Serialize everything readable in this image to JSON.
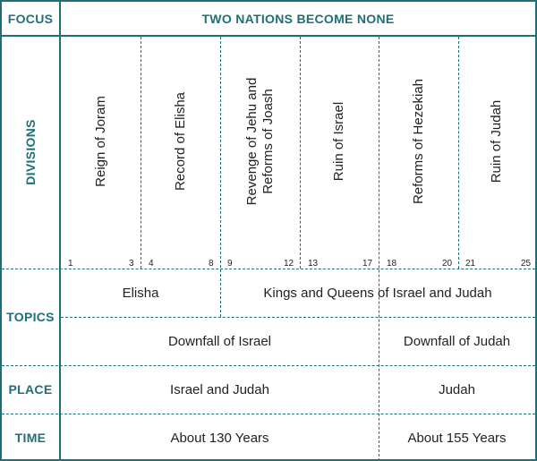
{
  "labels": {
    "focus": "FOCUS",
    "divisions": "DIVISIONS",
    "topics": "TOPICS",
    "place": "PLACE",
    "time": "TIME"
  },
  "focus_title": "TWO NATIONS BECOME NONE",
  "divisions": [
    {
      "title": "Reign of Joram",
      "start": "1",
      "end": "3"
    },
    {
      "title": "Record of Elisha",
      "start": "4",
      "end": "8"
    },
    {
      "title_line1": "Revenge of Jehu and",
      "title_line2": "Reforms of Joash",
      "start": "9",
      "end": "12"
    },
    {
      "title": "Ruin of Israel",
      "start": "13",
      "end": "17"
    },
    {
      "title": "Reforms of Hezekiah",
      "start": "18",
      "end": "20"
    },
    {
      "title": "Ruin of Judah",
      "start": "21",
      "end": "25"
    }
  ],
  "topics": {
    "row1": [
      "Elisha",
      "Kings and Queens of Israel and Judah"
    ],
    "row2": [
      "Downfall of Israel",
      "Downfall of Judah"
    ]
  },
  "place": [
    "Israel and Judah",
    "Judah"
  ],
  "time": [
    "About 130 Years",
    "About 155 Years"
  ],
  "colors": {
    "accent": "#1f6f78",
    "text": "#222222"
  }
}
